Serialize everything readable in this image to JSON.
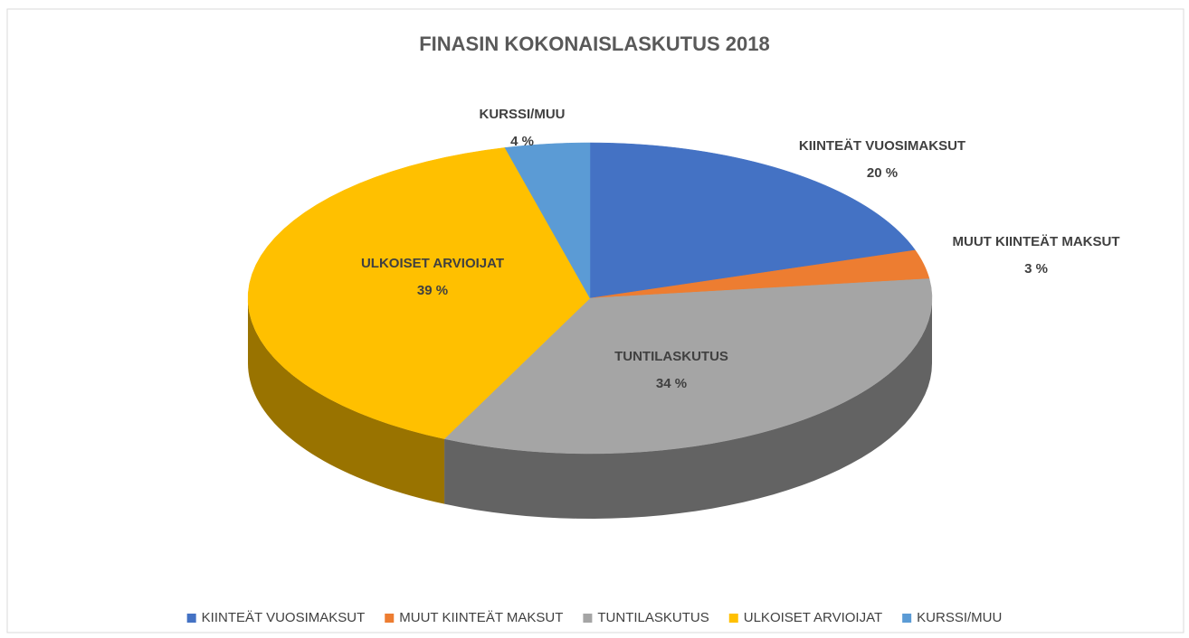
{
  "chart_data": {
    "type": "pie3d",
    "title": "FINASIN KOKONAISLASKUTUS  2018",
    "categories": [
      "KIINTEÄT VUOSIMAKSUT",
      "MUUT KIINTEÄT MAKSUT",
      "TUNTILASKUTUS",
      "ULKOISET ARVIOIJAT",
      "KURSSI/MUU"
    ],
    "values": [
      20,
      3,
      34,
      39,
      4
    ],
    "value_labels": [
      "20 %",
      "3 %",
      "34 %",
      "39 %",
      "4 %"
    ],
    "colors": [
      "#4472c4",
      "#ed7d31",
      "#a5a5a5",
      "#ffc000",
      "#5b9bd5"
    ],
    "legend": "bottom"
  }
}
